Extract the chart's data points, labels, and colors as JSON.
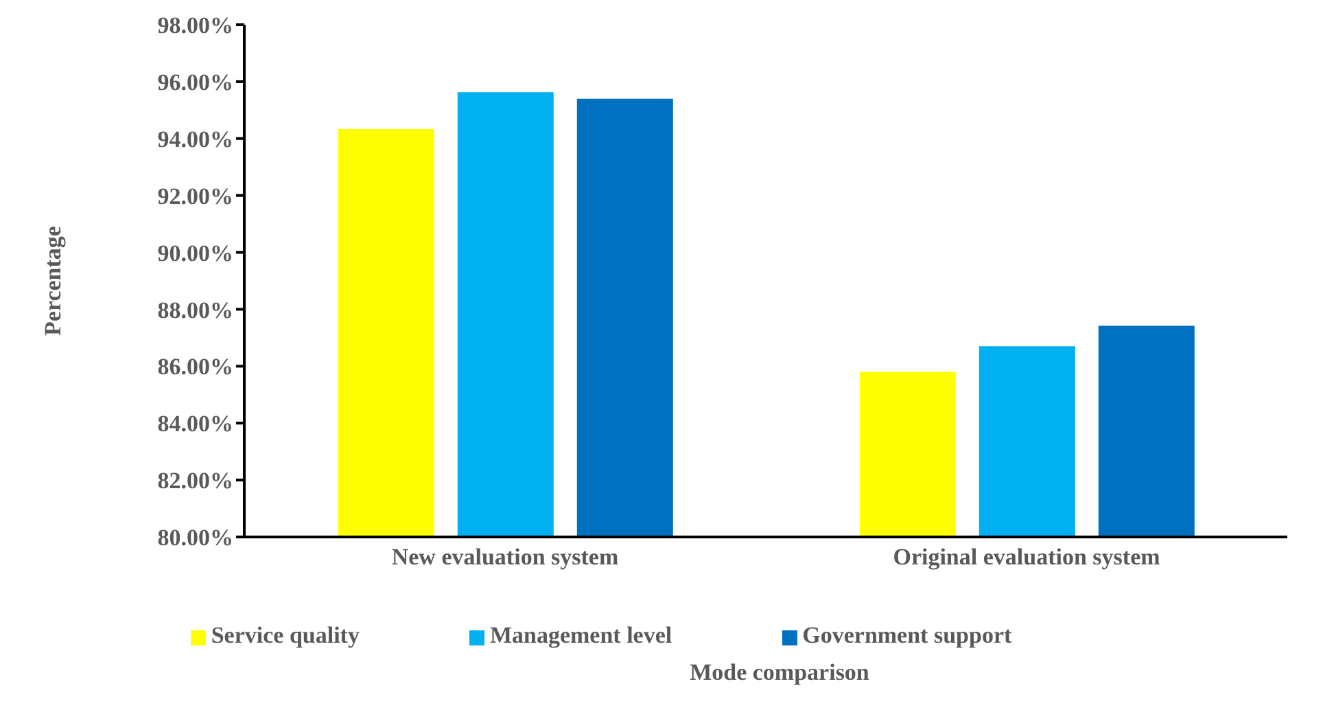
{
  "chart_data": {
    "type": "bar",
    "xlabel": "Mode comparison",
    "ylabel": "Percentage",
    "categories": [
      "New evaluation system",
      "Original evaluation system"
    ],
    "series": [
      {
        "name": "Service quality",
        "color": "#ffff00",
        "values": [
          94.33,
          85.8
        ]
      },
      {
        "name": "Management level",
        "color": "#00b0f0",
        "values": [
          95.63,
          86.7
        ]
      },
      {
        "name": "Government support",
        "color": "#0070c0",
        "values": [
          95.4,
          87.42
        ]
      }
    ],
    "ylim": [
      80,
      98
    ],
    "yticks": [
      {
        "value": 80,
        "label": "80.00%"
      },
      {
        "value": 82,
        "label": "82.00%"
      },
      {
        "value": 84,
        "label": "84.00%"
      },
      {
        "value": 86,
        "label": "86.00%"
      },
      {
        "value": 88,
        "label": "88.00%"
      },
      {
        "value": 90,
        "label": "90.00%"
      },
      {
        "value": 92,
        "label": "92.00%"
      },
      {
        "value": 94,
        "label": "94.00%"
      },
      {
        "value": 96,
        "label": "96.00%"
      },
      {
        "value": 98,
        "label": "98.00%"
      }
    ],
    "grid": false,
    "legend": "bottom"
  }
}
